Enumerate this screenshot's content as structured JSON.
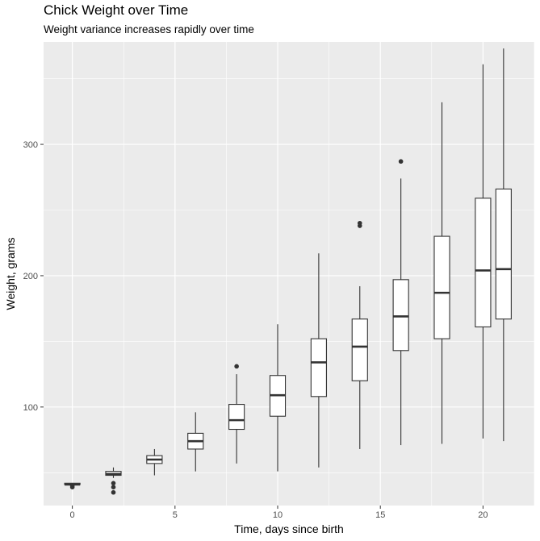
{
  "chart_data": {
    "type": "boxplot",
    "title": "Chick Weight over Time",
    "subtitle": "Weight variance increases rapidly over time",
    "xlabel": "Time, days since birth",
    "ylabel": "Weight, grams",
    "xlim": [
      -1.4,
      22.5
    ],
    "ylim": [
      25,
      378
    ],
    "x_ticks": [
      0,
      5,
      10,
      15,
      20
    ],
    "y_ticks": [
      100,
      200,
      300
    ],
    "grid": true,
    "colors": {
      "panel": "#ebebeb",
      "grid": "#ffffff",
      "box_fill": "#ffffff",
      "box_stroke": "#333333"
    },
    "boxes": [
      {
        "x": 0,
        "min": 41,
        "q1": 41,
        "median": 41,
        "q3": 42,
        "max": 42,
        "outliers": [
          39,
          40
        ]
      },
      {
        "x": 2,
        "min": 46,
        "q1": 48,
        "median": 49,
        "q3": 51,
        "max": 54,
        "outliers": [
          35,
          39,
          42
        ]
      },
      {
        "x": 4,
        "min": 48,
        "q1": 57,
        "median": 60,
        "q3": 63,
        "max": 68,
        "outliers": []
      },
      {
        "x": 6,
        "min": 51,
        "q1": 68,
        "median": 74,
        "q3": 80,
        "max": 96,
        "outliers": []
      },
      {
        "x": 8,
        "min": 57,
        "q1": 83,
        "median": 90,
        "q3": 102,
        "max": 125,
        "outliers": [
          131
        ]
      },
      {
        "x": 10,
        "min": 51,
        "q1": 93,
        "median": 109,
        "q3": 124,
        "max": 163,
        "outliers": []
      },
      {
        "x": 12,
        "min": 54,
        "q1": 108,
        "median": 134,
        "q3": 152,
        "max": 217,
        "outliers": []
      },
      {
        "x": 14,
        "min": 68,
        "q1": 120,
        "median": 146,
        "q3": 167,
        "max": 192,
        "outliers": [
          238,
          240
        ]
      },
      {
        "x": 16,
        "min": 71,
        "q1": 143,
        "median": 169,
        "q3": 197,
        "max": 274,
        "outliers": [
          287
        ]
      },
      {
        "x": 18,
        "min": 72,
        "q1": 152,
        "median": 187,
        "q3": 230,
        "max": 332,
        "outliers": []
      },
      {
        "x": 20,
        "min": 76,
        "q1": 161,
        "median": 204,
        "q3": 259,
        "max": 361,
        "outliers": []
      },
      {
        "x": 21,
        "min": 74,
        "q1": 167,
        "median": 205,
        "q3": 266,
        "max": 373,
        "outliers": []
      }
    ]
  }
}
